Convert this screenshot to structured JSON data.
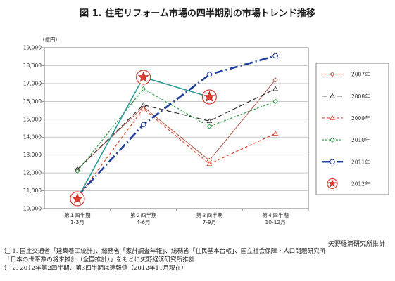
{
  "title": "図 1. 住宅リフォーム市場の四半期別の市場トレンド推移",
  "source": "矢野経済研究所推計",
  "notes": [
    "注 1. 国土交通省「建築着工統計」、総務省「家計調査年報」、総務省「住民基本台帳」、国立社会保障・人口問題研究所",
    "「日本の世帯数の将来推計（全国推計）」をもとに矢野経済研究所推計",
    "注 2. 2012年第2四半期、第3四半期は速報値（2012年11月現在）"
  ],
  "chart_data": {
    "type": "line",
    "ylabel": "（億円）",
    "ylim": [
      10000,
      19000
    ],
    "yticks": [
      "10,000",
      "11,000",
      "12,000",
      "13,000",
      "14,000",
      "15,000",
      "16,000",
      "17,000",
      "18,000",
      "19,000"
    ],
    "grid": true,
    "legend_position": "right",
    "categories": [
      {
        "line1": "第１四半期",
        "line2": "1-3月"
      },
      {
        "line1": "第２四半期",
        "line2": "4-6月"
      },
      {
        "line1": "第３四半期",
        "line2": "7-9月"
      },
      {
        "line1": "第４四半期",
        "line2": "10-12月"
      }
    ],
    "series": [
      {
        "name": "2007年",
        "values": [
          12200,
          15700,
          12700,
          17200
        ],
        "color": "#b05a4a",
        "dash": "",
        "width": 1,
        "marker": "diamond"
      },
      {
        "name": "2008年",
        "values": [
          12200,
          15800,
          14900,
          16700
        ],
        "color": "#333333",
        "dash": "7,4",
        "width": 1.2,
        "marker": "triangle"
      },
      {
        "name": "2009年",
        "values": [
          10600,
          15600,
          12500,
          14200
        ],
        "color": "#e0442c",
        "dash": "4,3",
        "width": 1.2,
        "marker": "triangle"
      },
      {
        "name": "2010年",
        "values": [
          12100,
          16700,
          14600,
          16000
        ],
        "color": "#2e9a46",
        "dash": "3,2",
        "width": 1.2,
        "marker": "diamond"
      },
      {
        "name": "2011年",
        "values": [
          10700,
          14700,
          17500,
          18550
        ],
        "color": "#1f3f9e",
        "dash": "12,4,2,4",
        "width": 2.6,
        "marker": "circle"
      },
      {
        "name": "2012年",
        "values": [
          10550,
          17350,
          16250,
          null
        ],
        "color": "#2a9a96",
        "dash": "",
        "width": 1.6,
        "marker": "star"
      }
    ]
  }
}
